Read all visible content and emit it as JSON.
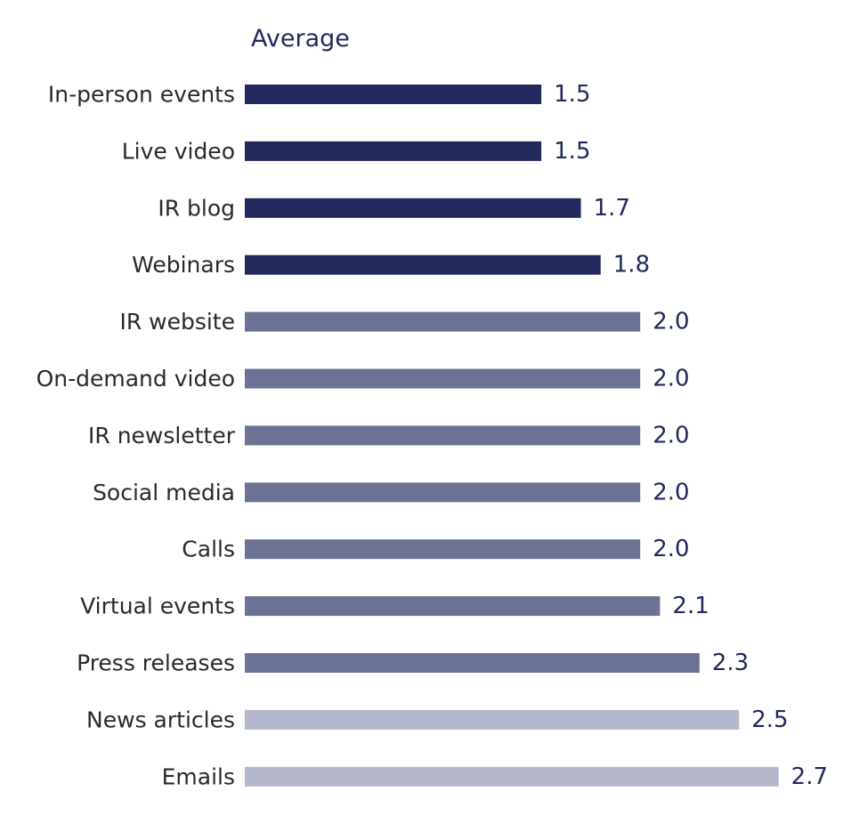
{
  "chart_data": {
    "type": "bar",
    "orientation": "horizontal",
    "title": "Average",
    "categories": [
      "In-person events",
      "Live video",
      "IR blog",
      "Webinars",
      "IR website",
      "On-demand video",
      "IR newsletter",
      "Social media",
      "Calls",
      "Virtual events",
      "Press releases",
      "News articles",
      "Emails"
    ],
    "values": [
      1.5,
      1.5,
      1.7,
      1.8,
      2.0,
      2.0,
      2.0,
      2.0,
      2.0,
      2.1,
      2.3,
      2.5,
      2.7
    ],
    "value_labels": [
      "1.5",
      "1.5",
      "1.7",
      "1.8",
      "2.0",
      "2.0",
      "2.0",
      "2.0",
      "2.0",
      "2.1",
      "2.3",
      "2.5",
      "2.7"
    ],
    "bar_colors": [
      "#22295d",
      "#22295d",
      "#22295d",
      "#22295d",
      "#6c7293",
      "#6c7293",
      "#6c7293",
      "#6c7293",
      "#6c7293",
      "#6c7293",
      "#6c7293",
      "#b5b7cb",
      "#b5b7cb"
    ],
    "text_color": "#22295d",
    "label_color": "#2a2a2a",
    "xlim": [
      0,
      2.7
    ],
    "grid": false,
    "legend": "none"
  }
}
